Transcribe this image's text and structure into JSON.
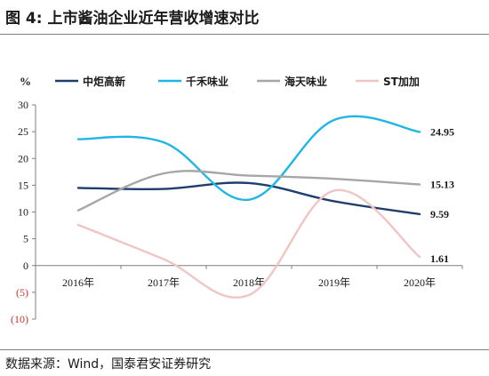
{
  "figure": {
    "title": "图 4:  上市酱油企业近年营收增速对比",
    "source": "数据来源：Wind，国泰君安证券研究"
  },
  "chart_data": {
    "type": "line",
    "unit": "%",
    "categories": [
      "2016年",
      "2017年",
      "2018年",
      "2019年",
      "2020年"
    ],
    "ylim": [
      -10,
      30
    ],
    "yticks": [
      30,
      25,
      20,
      15,
      10,
      5,
      0,
      -5,
      -10
    ],
    "ytick_labels": [
      "30",
      "25",
      "20",
      "15",
      "10",
      "5",
      "0",
      "(5)",
      "(10)"
    ],
    "legend_position": "top",
    "grid": false,
    "series": [
      {
        "name": "中炬高新",
        "color": "#1f3e6e",
        "values": [
          14.5,
          14.3,
          15.4,
          12.0,
          9.59
        ],
        "end_label": "9.59"
      },
      {
        "name": "千禾味业",
        "color": "#1fb6e6",
        "values": [
          23.6,
          23.0,
          12.3,
          27.2,
          24.95
        ],
        "end_label": "24.95"
      },
      {
        "name": "海天味业",
        "color": "#a6a6a6",
        "values": [
          10.3,
          17.2,
          16.8,
          16.2,
          15.13
        ],
        "end_label": "15.13"
      },
      {
        "name": "ST加加",
        "color": "#f2c4c4",
        "values": [
          7.6,
          1.2,
          -5.5,
          14.0,
          1.61
        ],
        "end_label": "1.61"
      }
    ]
  }
}
